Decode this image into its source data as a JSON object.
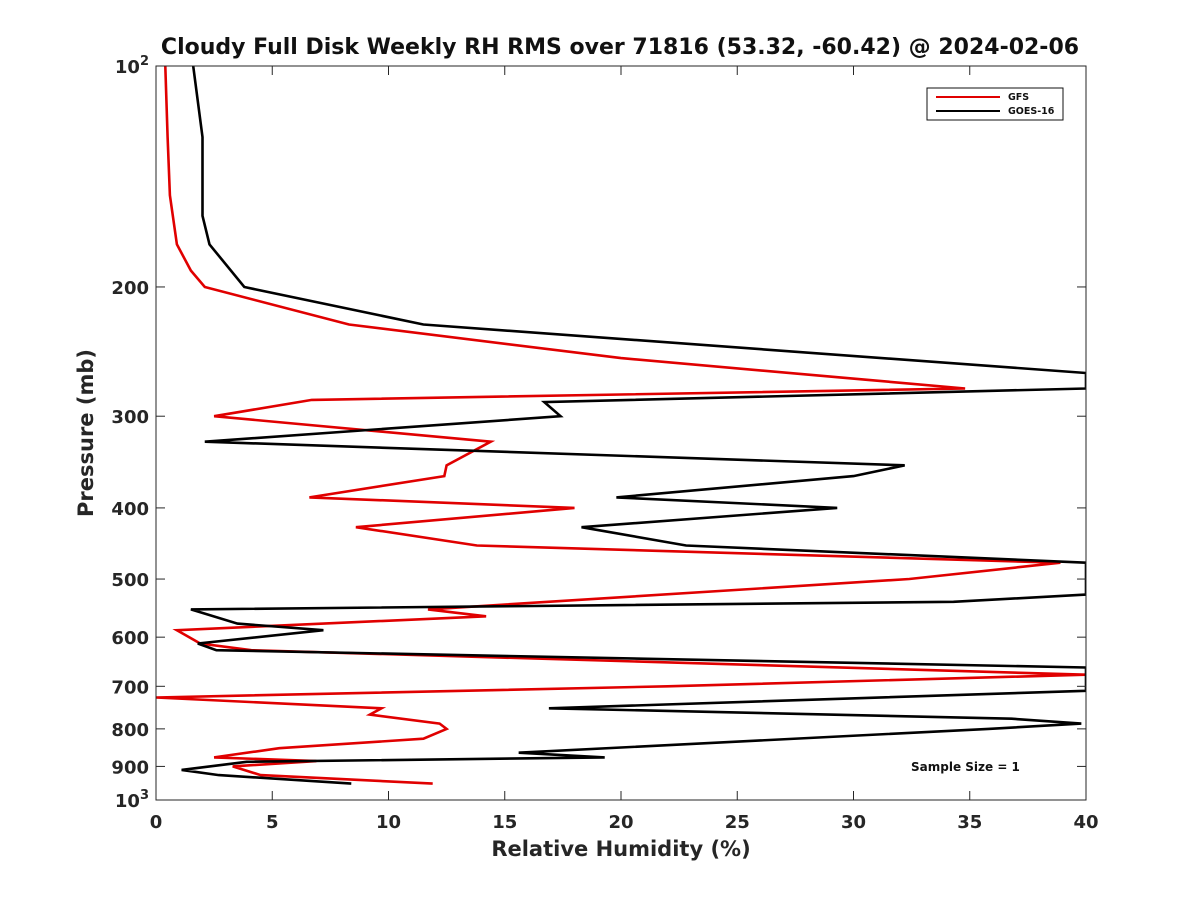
{
  "chart_data": {
    "type": "line",
    "title": "Cloudy Full Disk Weekly RH RMS over 71816 (53.32, -60.42) @ 2024-02-06",
    "xlabel": "Relative Humidity (%)",
    "ylabel": "Pressure (mb)",
    "xlim": [
      0,
      40
    ],
    "ylim": [
      100,
      1000
    ],
    "y_scale": "log",
    "y_reversed": true,
    "grid": false,
    "legend_position": "top-right",
    "x_ticks": [
      "0",
      "5",
      "10",
      "15",
      "20",
      "25",
      "30",
      "35",
      "40"
    ],
    "y_ticks": [
      {
        "value": 100,
        "base": "10",
        "exp": "2"
      },
      {
        "value": 200,
        "label": "200"
      },
      {
        "value": 300,
        "label": "300"
      },
      {
        "value": 400,
        "label": "400"
      },
      {
        "value": 500,
        "label": "500"
      },
      {
        "value": 600,
        "label": "600"
      },
      {
        "value": 700,
        "label": "700"
      },
      {
        "value": 800,
        "label": "800"
      },
      {
        "value": 900,
        "label": "900"
      },
      {
        "value": 1000,
        "base": "10",
        "exp": "3"
      }
    ],
    "series": [
      {
        "name": "GFS",
        "color": "#e00000",
        "points": [
          [
            0.4,
            100
          ],
          [
            0.5,
            125
          ],
          [
            0.6,
            150
          ],
          [
            0.9,
            175
          ],
          [
            1.5,
            190
          ],
          [
            2.1,
            200
          ],
          [
            8.3,
            225
          ],
          [
            20.0,
            250
          ],
          [
            34.8,
            275
          ],
          [
            6.7,
            285
          ],
          [
            2.5,
            300
          ],
          [
            14.4,
            325
          ],
          [
            12.5,
            350
          ],
          [
            12.4,
            362
          ],
          [
            6.6,
            387
          ],
          [
            18.0,
            400
          ],
          [
            8.6,
            425
          ],
          [
            13.8,
            450
          ],
          [
            38.9,
            475
          ],
          [
            32.4,
            500
          ],
          [
            11.7,
            550
          ],
          [
            14.2,
            562
          ],
          [
            0.9,
            587
          ],
          [
            1.9,
            612
          ],
          [
            4.1,
            625
          ],
          [
            40.0,
            675
          ],
          [
            22.0,
            700
          ],
          [
            0.0,
            725
          ],
          [
            9.7,
            750
          ],
          [
            9.2,
            765
          ],
          [
            12.2,
            787
          ],
          [
            12.5,
            800
          ],
          [
            11.5,
            825
          ],
          [
            5.3,
            850
          ],
          [
            2.5,
            875
          ],
          [
            6.9,
            885
          ],
          [
            3.3,
            900
          ],
          [
            4.5,
            925
          ],
          [
            11.9,
            950
          ]
        ]
      },
      {
        "name": "GOES-16",
        "color": "#000000",
        "points": [
          [
            1.6,
            100
          ],
          [
            2.0,
            125
          ],
          [
            2.0,
            150
          ],
          [
            2.0,
            160
          ],
          [
            2.3,
            175
          ],
          [
            3.8,
            200
          ],
          [
            11.5,
            225
          ],
          [
            40.0,
            262
          ],
          [
            40.0,
            275
          ],
          [
            16.7,
            287
          ],
          [
            17.4,
            300
          ],
          [
            2.1,
            325
          ],
          [
            32.2,
            350
          ],
          [
            30.0,
            362
          ],
          [
            19.8,
            387
          ],
          [
            29.3,
            400
          ],
          [
            18.3,
            425
          ],
          [
            22.8,
            450
          ],
          [
            40.0,
            475
          ],
          [
            40.0,
            525
          ],
          [
            34.3,
            537
          ],
          [
            1.5,
            550
          ],
          [
            3.5,
            575
          ],
          [
            7.2,
            587
          ],
          [
            1.8,
            612
          ],
          [
            2.6,
            625
          ],
          [
            40.0,
            660
          ],
          [
            40.0,
            710
          ],
          [
            16.9,
            750
          ],
          [
            36.8,
            775
          ],
          [
            39.8,
            787
          ],
          [
            35.8,
            800
          ],
          [
            15.6,
            862
          ],
          [
            19.3,
            875
          ],
          [
            3.9,
            887
          ],
          [
            1.1,
            910
          ],
          [
            2.7,
            925
          ],
          [
            8.4,
            950
          ]
        ]
      }
    ],
    "annotation": "Sample Size = 1"
  }
}
